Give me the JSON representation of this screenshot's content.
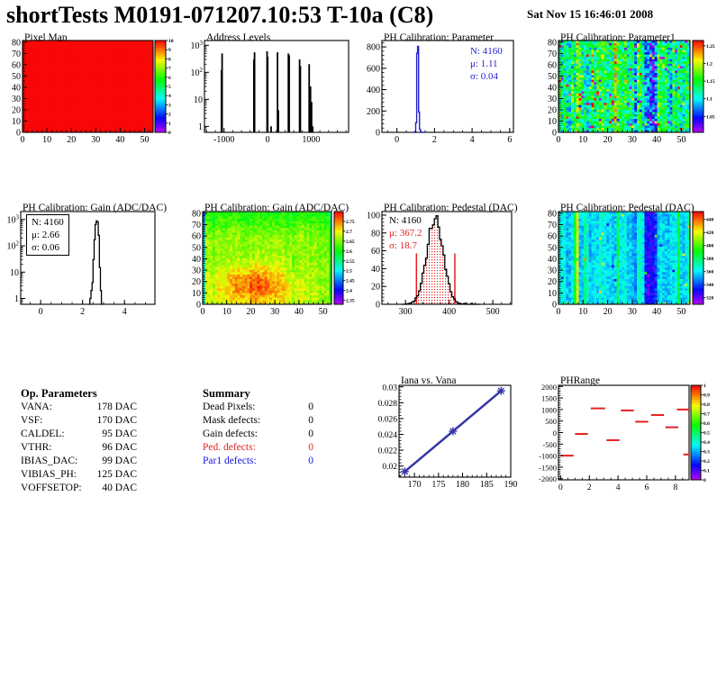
{
  "header": {
    "title": "shortTests M0191-071207.10:53 T-10a (C8)",
    "timestamp": "Sat Nov 15 16:46:01 2008"
  },
  "colors": {
    "background": "#ffffff",
    "frame": "#000000",
    "hist_blue": "#2222cc",
    "defect_red": "#e62020",
    "par1_blue": "#1111dd",
    "line_indigo": "#3535a8"
  },
  "op_parameters": {
    "heading": "Op. Parameters",
    "rows": [
      {
        "label": "VANA:",
        "value": "178 DAC"
      },
      {
        "label": "VSF:",
        "value": "170 DAC"
      },
      {
        "label": "CALDEL:",
        "value": "95 DAC"
      },
      {
        "label": "VTHR:",
        "value": "96 DAC"
      },
      {
        "label": "IBIAS_DAC:",
        "value": "99 DAC"
      },
      {
        "label": "VIBIAS_PH:",
        "value": "125 DAC"
      },
      {
        "label": "VOFFSETOP:",
        "value": "40 DAC"
      }
    ]
  },
  "summary": {
    "heading": "Summary",
    "rows": [
      {
        "label": "Dead Pixels:",
        "value": "0",
        "color": "#000000"
      },
      {
        "label": "Mask defects:",
        "value": "0",
        "color": "#000000"
      },
      {
        "label": "Gain defects:",
        "value": "0",
        "color": "#000000"
      },
      {
        "label": "Ped. defects:",
        "value": "0",
        "color": "#e62020"
      },
      {
        "label": "Par1 defects:",
        "value": "0",
        "color": "#1111dd"
      }
    ]
  },
  "chart_data": [
    {
      "id": "pixel-map",
      "title": "Pixel Map",
      "type": "heatmap",
      "x_range": [
        0,
        53.5
      ],
      "y_range": [
        0,
        81.5
      ],
      "x_ticks": [
        0,
        10,
        20,
        30,
        40,
        50
      ],
      "y_ticks": [
        0,
        10,
        20,
        30,
        40,
        50,
        60,
        70,
        80
      ],
      "colorbar": {
        "min": 0,
        "max": 10,
        "ticks": [
          0,
          1,
          2,
          3,
          4,
          5,
          6,
          7,
          8,
          9,
          10
        ]
      },
      "pattern": {
        "kind": "uniform",
        "value": 10
      },
      "seed": 1
    },
    {
      "id": "address-levels",
      "title": "Address Levels",
      "type": "histogram-log-spikes",
      "x_range": [
        -1450,
        1860
      ],
      "y_range_log": [
        0.6,
        1500
      ],
      "x_ticks": [
        -1000,
        0,
        1000
      ],
      "y_ticks_log": [
        "1",
        "10",
        "10^2",
        "10^3"
      ],
      "spikes": [
        [
          -1060,
          120
        ],
        [
          -1045,
          500
        ],
        [
          -315,
          300
        ],
        [
          -300,
          550
        ],
        [
          -12,
          600
        ],
        [
          2,
          380
        ],
        [
          80,
          1
        ],
        [
          228,
          550
        ],
        [
          247,
          4
        ],
        [
          478,
          500
        ],
        [
          495,
          430
        ],
        [
          735,
          300
        ],
        [
          752,
          170
        ],
        [
          955,
          200
        ],
        [
          985,
          30
        ],
        [
          1010,
          8
        ],
        [
          1035,
          1
        ]
      ]
    },
    {
      "id": "ph-calibration-parameter",
      "title": "PH Calibration: Parameter",
      "type": "histogram",
      "color": "#2222cc",
      "x_range": [
        -0.8,
        6.2
      ],
      "y_range": [
        0,
        860
      ],
      "x_ticks": [
        0,
        2,
        4,
        6
      ],
      "y_ticks": [
        0,
        200,
        400,
        600,
        800
      ],
      "bin_width": 0.05,
      "bins_start": 0.9,
      "bins": [
        0,
        6,
        90,
        740,
        805,
        190,
        28,
        6,
        2,
        0
      ],
      "stats": {
        "n_label": "N: 4160",
        "mu_label": "μ: 1.11",
        "sigma_label": "σ: 0.04",
        "color": "#2222cc"
      }
    },
    {
      "id": "ph-calibration-parameter1",
      "title": "PH Calibration: Parameter1",
      "type": "heatmap",
      "x_range": [
        0,
        53.5
      ],
      "y_range": [
        0,
        81.5
      ],
      "x_ticks": [
        0,
        10,
        20,
        30,
        40,
        50
      ],
      "y_ticks": [
        0,
        10,
        20,
        30,
        40,
        50,
        60,
        70,
        80
      ],
      "colorbar": {
        "min": 1.005,
        "max": 1.265,
        "ticks": [
          1,
          1.05,
          1.1,
          1.15,
          1.2,
          1.25
        ]
      },
      "pattern": {
        "kind": "noise",
        "base": 1.135,
        "cell_noise": 0.048,
        "col_noise": 0.024,
        "col_offsets": {
          "7": 0.05,
          "17": 0.045,
          "22": 0.04,
          "30": -0.045,
          "34": -0.06,
          "35": -0.07,
          "36": -0.075,
          "37": -0.07,
          "38": -0.05,
          "44": -0.04
        },
        "sprinkle_hi": 0.025,
        "sprinkle_hi_amt": 0.12,
        "sprinkle_lo": 0.02,
        "sprinkle_lo_amt": -0.13
      },
      "seed": 7
    },
    {
      "id": "ph-calibration-gain-hist",
      "title": "PH Calibration: Gain (ADC/DAC)",
      "type": "histogram-log",
      "color": "#000000",
      "x_range": [
        -0.95,
        5.45
      ],
      "y_range_log": [
        0.6,
        2000
      ],
      "x_ticks": [
        0,
        2,
        4
      ],
      "y_ticks_log": [
        "1",
        "10",
        "10^2",
        "10^3"
      ],
      "bin_width": 0.05,
      "bins_start": 2.3,
      "bins": [
        0,
        1,
        2,
        4,
        30,
        170,
        650,
        880,
        800,
        250,
        15,
        2,
        0
      ],
      "stats": {
        "n_label": "N: 4160",
        "mu_label": "μ: 2.66",
        "sigma_label": "σ: 0.06",
        "color": "#000000",
        "box": true
      }
    },
    {
      "id": "ph-calibration-gain-map",
      "title": "PH Calibration: Gain (ADC/DAC)",
      "type": "heatmap",
      "x_range": [
        0,
        53.5
      ],
      "y_range": [
        0,
        81.5
      ],
      "x_ticks": [
        0,
        10,
        20,
        30,
        40,
        50
      ],
      "y_ticks": [
        0,
        10,
        20,
        30,
        40,
        50,
        60,
        70,
        80
      ],
      "colorbar": {
        "min": 2.33,
        "max": 2.8,
        "ticks": [
          2.35,
          2.4,
          2.45,
          2.5,
          2.55,
          2.6,
          2.65,
          2.7,
          2.75
        ]
      },
      "pattern": {
        "kind": "gain",
        "base": 2.655,
        "cell_noise": 0.026,
        "col_noise": 0.012,
        "blob": {
          "x": 21,
          "y": 16,
          "sx": 9,
          "sy": 12,
          "amp": 0.1
        },
        "top_grad": -0.055,
        "left_col": -0.16,
        "right_col": -0.05
      },
      "seed": 13
    },
    {
      "id": "ph-calibration-pedestal-hist",
      "title": "PH Calibration: Pedestal (DAC)",
      "type": "histogram-gauss",
      "color": "#000000",
      "x_range": [
        246,
        543
      ],
      "y_range": [
        0,
        104
      ],
      "x_ticks": [
        300,
        400,
        500
      ],
      "y_ticks": [
        0,
        20,
        40,
        60,
        80,
        100
      ],
      "gauss": {
        "mu": 367.2,
        "sigma": 18.7,
        "amp": 97,
        "bin_width": 4,
        "start": 290,
        "end": 470
      },
      "marker_lines": {
        "x": [
          325,
          413
        ],
        "height": 57,
        "color": "#e62020"
      },
      "fill_between": [
        325,
        413
      ],
      "stats": {
        "n_label": "N: 4160",
        "mu_label": "μ: 367.2",
        "sigma_label": "σ: 18.7",
        "n_color": "#000000",
        "mu_color": "#e62020"
      }
    },
    {
      "id": "ph-calibration-pedestal-map",
      "title": "PH Calibration: Pedestal (DAC)",
      "type": "heatmap",
      "x_range": [
        0,
        53.5
      ],
      "y_range": [
        0,
        81.5
      ],
      "x_ticks": [
        0,
        10,
        20,
        30,
        40,
        50
      ],
      "y_ticks": [
        0,
        10,
        20,
        30,
        40,
        50,
        60,
        70,
        80
      ],
      "colorbar": {
        "min": 310,
        "max": 452,
        "ticks": [
          320,
          340,
          360,
          380,
          400,
          420,
          440
        ]
      },
      "pattern": {
        "kind": "noise",
        "base": 362,
        "cell_noise": 8,
        "col_noise": 7,
        "col_offsets": {
          "6": 18,
          "7": 58,
          "10": 14,
          "23": 22,
          "28": -10,
          "29": -12,
          "30": -10,
          "34": -28,
          "35": -34,
          "36": -36,
          "37": -32,
          "38": -20,
          "47": 18,
          "51": 10
        },
        "sprinkle_hi": 0.01,
        "sprinkle_hi_amt": 60,
        "sprinkle_lo": 0.008,
        "sprinkle_lo_amt": -30
      },
      "seed": 21
    },
    {
      "id": "iana-vs-vana",
      "title": "Iana vs. Vana",
      "type": "line",
      "color": "#3535a8",
      "x_range": [
        166.8,
        190
      ],
      "y_range": [
        0.0186,
        0.0302
      ],
      "x_ticks": [
        170,
        175,
        180,
        185,
        190
      ],
      "y_ticks": [
        0.02,
        0.022,
        0.024,
        0.026,
        0.028,
        0.03
      ],
      "points": [
        [
          168,
          0.0193
        ],
        [
          178,
          0.0244
        ],
        [
          188,
          0.0295
        ]
      ]
    },
    {
      "id": "phrange",
      "title": "PHRange",
      "type": "segments",
      "color": "#e62020",
      "x_range": [
        -0.15,
        8.95
      ],
      "y_range": [
        -2050,
        2050
      ],
      "x_ticks": [
        0,
        2,
        4,
        6,
        8
      ],
      "y_ticks": [
        2000,
        1500,
        1000,
        500,
        0,
        -500,
        -1000,
        -1500,
        -2000
      ],
      "colorbar": {
        "min": 0,
        "max": 1,
        "ticks": [
          0,
          0.1,
          0.2,
          0.3,
          0.4,
          0.5,
          0.6,
          0.7,
          0.8,
          0.9,
          1
        ]
      },
      "segments": [
        [
          0,
          0.9,
          -1000
        ],
        [
          1,
          1.9,
          -60
        ],
        [
          2.1,
          3.1,
          1050
        ],
        [
          3.2,
          4.1,
          -330
        ],
        [
          4.2,
          5.1,
          960
        ],
        [
          5.2,
          6.1,
          470
        ],
        [
          6.3,
          7.2,
          760
        ],
        [
          7.3,
          8.2,
          230
        ],
        [
          8.1,
          8.95,
          1000
        ],
        [
          8.55,
          8.95,
          -950
        ]
      ]
    }
  ]
}
